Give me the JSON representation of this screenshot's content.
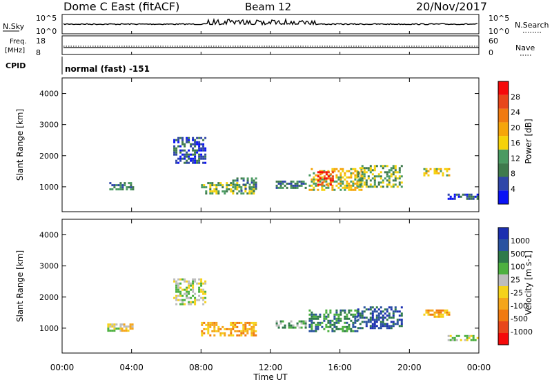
{
  "header": {
    "station": "Dome C East (fitACF)",
    "beam": "Beam 12",
    "date": "20/Nov/2017"
  },
  "top_panels": {
    "nsky_label": "N.Sky",
    "nsky_ticks": [
      "10^5",
      "10^0"
    ],
    "nsearch_label": "N.Search",
    "nsearch_ticks": [
      "10^5",
      "10^0"
    ],
    "freq_label_line1": "Freq.",
    "freq_label_line2": "[MHz]",
    "freq_ticks": [
      "18",
      "8"
    ],
    "nave_label": "Nave",
    "nave_ticks": [
      "60",
      "0"
    ],
    "cpid_label": "CPID",
    "cpid_text": "normal (fast) -151"
  },
  "colors": {
    "power": [
      "#0a12f5",
      "#2f46a8",
      "#3f7a4d",
      "#4a9a62",
      "#f5d20a",
      "#f5a50a",
      "#f07a10",
      "#e8461a",
      "#f50a0a"
    ],
    "velocity": [
      "#1c2fb0",
      "#2a52a0",
      "#2e7a4a",
      "#4db040",
      "#bdbdbd",
      "#f5d21a",
      "#f5a51a",
      "#f07a10",
      "#e8461a",
      "#f50a0a"
    ]
  },
  "chart_data": [
    {
      "type": "heatmap",
      "name": "power",
      "ylabel": "Slant Range [km]",
      "xlim": [
        "00:00",
        "24:00"
      ],
      "ylim": [
        200,
        4500
      ],
      "yticks": [
        "1000",
        "2000",
        "3000",
        "4000"
      ],
      "colorbar_label": "Power [dB]",
      "colorbar_ticks": [
        "4",
        "8",
        "12",
        "16",
        "20",
        "24",
        "28"
      ],
      "colorbar_range": [
        0,
        32
      ],
      "patches": [
        {
          "t0": 2.6,
          "t1": 4.1,
          "r0": 950,
          "r1": 1150,
          "level": 2
        },
        {
          "t0": 8.0,
          "t1": 11.0,
          "r0": 800,
          "r1": 1150,
          "level": 3
        },
        {
          "t0": 9.8,
          "t1": 11.2,
          "r0": 850,
          "r1": 1300,
          "level": 2
        },
        {
          "t0": 6.4,
          "t1": 8.2,
          "r0": 1800,
          "r1": 2600,
          "level": 1
        },
        {
          "t0": 12.3,
          "t1": 14.0,
          "r0": 1000,
          "r1": 1200,
          "level": 2
        },
        {
          "t0": 14.2,
          "t1": 17.2,
          "r0": 900,
          "r1": 1600,
          "level": 4
        },
        {
          "t0": 14.7,
          "t1": 15.6,
          "r0": 1100,
          "r1": 1500,
          "level": 7
        },
        {
          "t0": 17.0,
          "t1": 19.6,
          "r0": 1000,
          "r1": 1700,
          "level": 3
        },
        {
          "t0": 20.8,
          "t1": 22.3,
          "r0": 1350,
          "r1": 1600,
          "level": 4
        },
        {
          "t0": 22.2,
          "t1": 23.9,
          "r0": 620,
          "r1": 780,
          "level": 1
        }
      ]
    },
    {
      "type": "heatmap",
      "name": "velocity",
      "xlabel": "Time UT",
      "ylabel": "Slant Range [km]",
      "xlim": [
        "00:00",
        "24:00"
      ],
      "ylim": [
        200,
        4500
      ],
      "xticks": [
        "00:00",
        "04:00",
        "08:00",
        "12:00",
        "16:00",
        "20:00",
        "00:00"
      ],
      "yticks": [
        "1000",
        "2000",
        "3000",
        "4000"
      ],
      "colorbar_label": "Velocity [m s-1]",
      "colorbar_ticks": [
        "1000",
        "500",
        "100",
        "25",
        "-25",
        "-100",
        "-500",
        "-1000"
      ],
      "patches": [
        {
          "t0": 2.6,
          "t1": 3.4,
          "r0": 950,
          "r1": 1150,
          "level": 4
        },
        {
          "t0": 3.4,
          "t1": 4.1,
          "r0": 950,
          "r1": 1150,
          "level": 5
        },
        {
          "t0": 8.0,
          "t1": 11.2,
          "r0": 800,
          "r1": 1200,
          "level": 6
        },
        {
          "t0": 6.4,
          "t1": 8.2,
          "r0": 1800,
          "r1": 2600,
          "level": 4
        },
        {
          "t0": 12.3,
          "t1": 14.0,
          "r0": 1000,
          "r1": 1250,
          "level": 3
        },
        {
          "t0": 14.2,
          "t1": 17.0,
          "r0": 900,
          "r1": 1600,
          "level": 2
        },
        {
          "t0": 17.0,
          "t1": 19.6,
          "r0": 1000,
          "r1": 1700,
          "level": 1
        },
        {
          "t0": 20.8,
          "t1": 22.3,
          "r0": 1350,
          "r1": 1600,
          "level": 6
        },
        {
          "t0": 22.2,
          "t1": 23.9,
          "r0": 620,
          "r1": 780,
          "level": 4
        }
      ]
    }
  ]
}
